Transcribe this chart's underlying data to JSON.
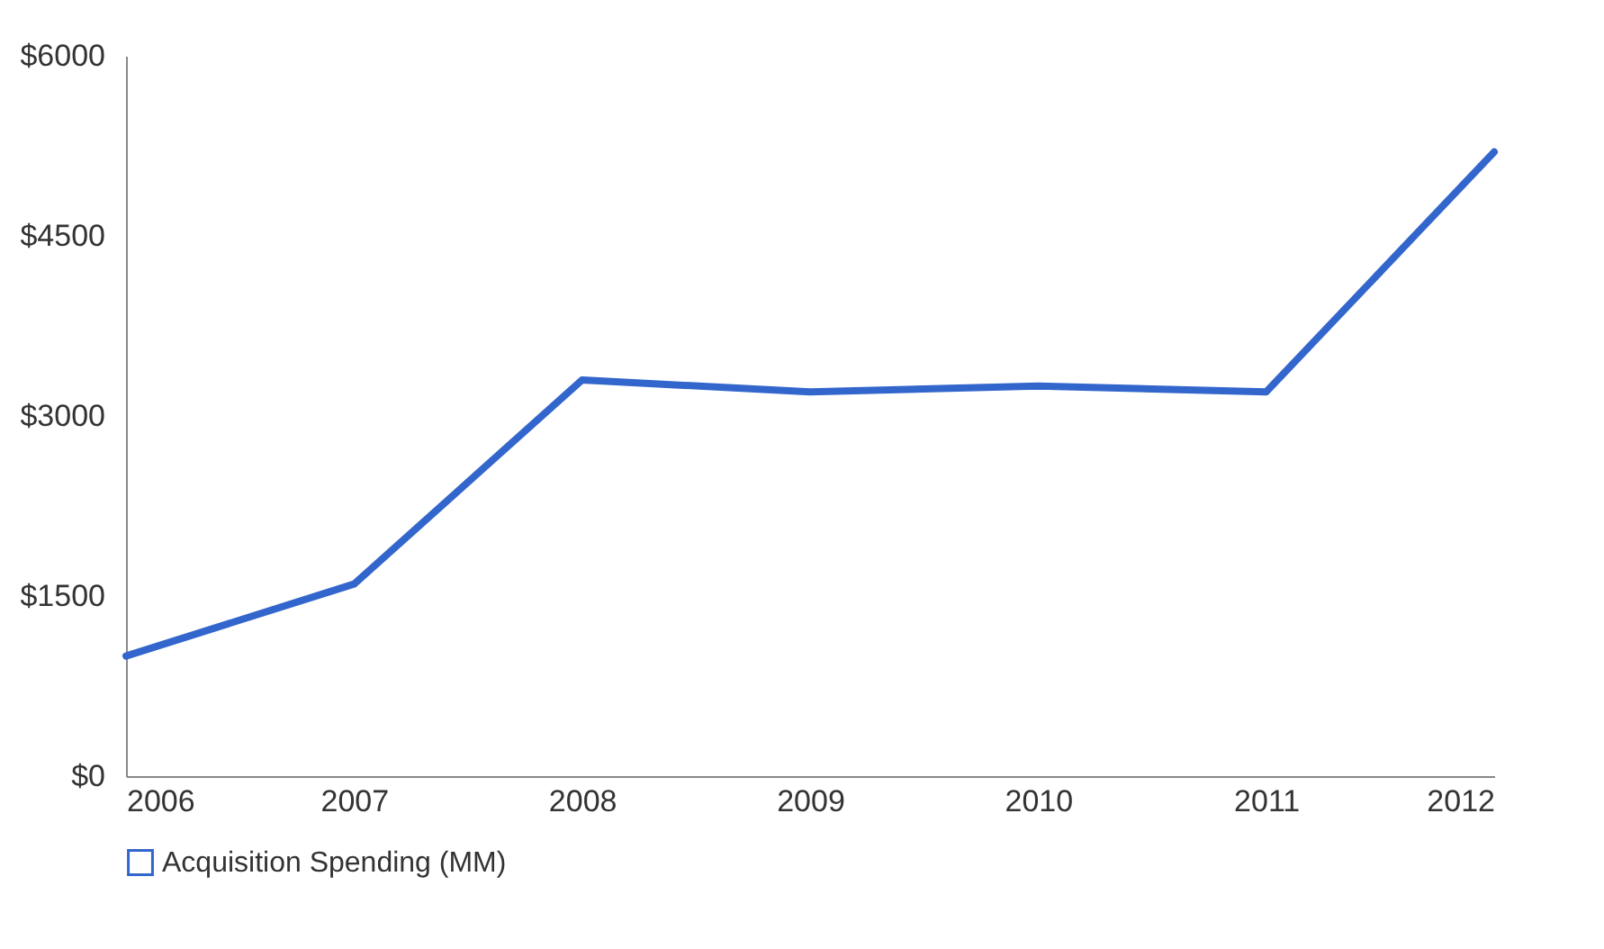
{
  "chart_data": {
    "type": "line",
    "x": [
      2006,
      2007,
      2008,
      2009,
      2010,
      2011,
      2012
    ],
    "series": [
      {
        "name": "Acquisition Spending (MM)",
        "color": "#3366cc",
        "values": [
          1000,
          1600,
          3300,
          3200,
          3250,
          3200,
          5200
        ]
      }
    ],
    "xlim": [
      2006,
      2012
    ],
    "xticks": [
      2006,
      2007,
      2008,
      2009,
      2010,
      2011,
      2012
    ],
    "ylim": [
      0,
      6000
    ],
    "yticks": [
      {
        "value": 0,
        "label": "$0"
      },
      {
        "value": 1500,
        "label": "$1500"
      },
      {
        "value": 3000,
        "label": "$3000"
      },
      {
        "value": 4500,
        "label": "$4500"
      },
      {
        "value": 6000,
        "label": "$6000"
      }
    ],
    "grid": false,
    "legend": "bottom",
    "marker": "none",
    "line_style": "solid"
  }
}
